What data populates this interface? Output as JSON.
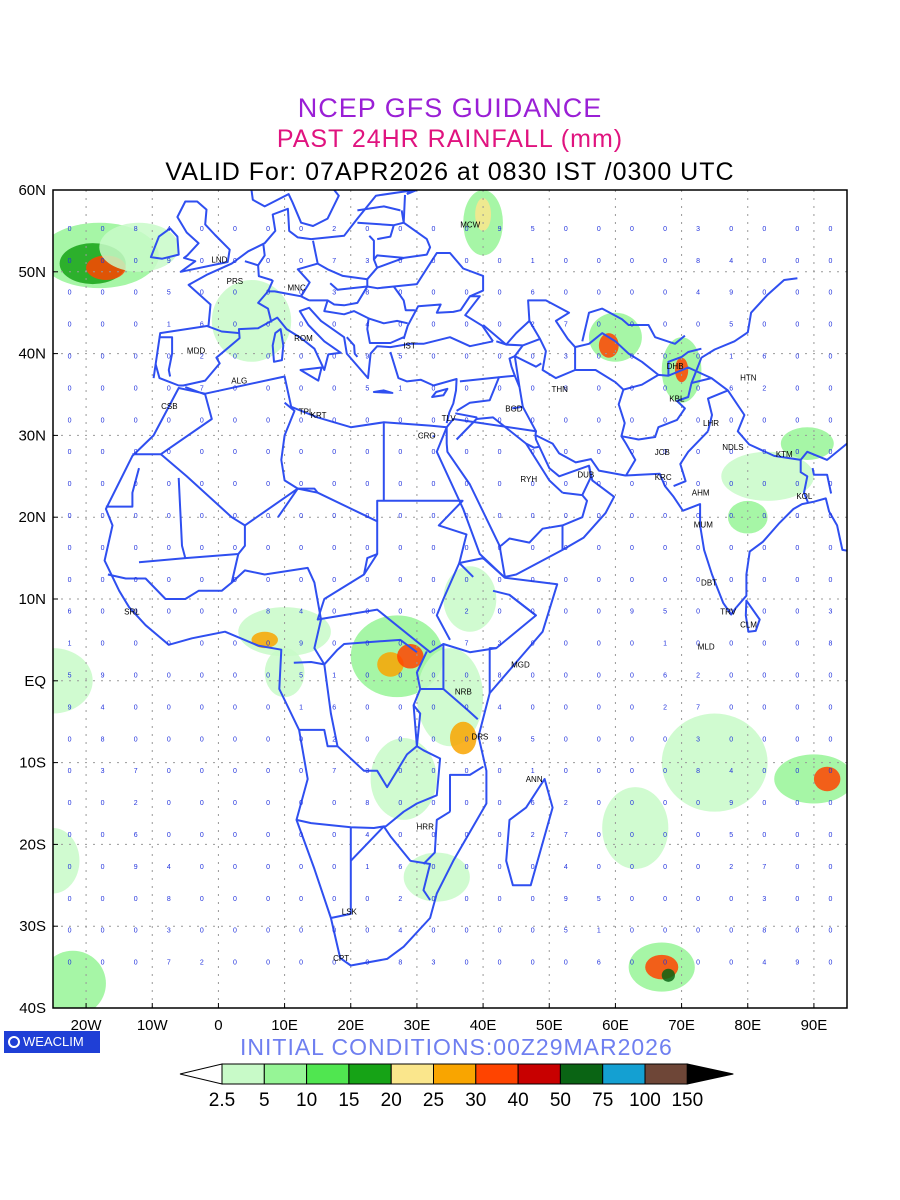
{
  "header": {
    "line1": "NCEP GFS GUIDANCE",
    "line2": "PAST 24HR RAINFALL (mm)",
    "line3": "VALID For: 07APR2026 at 0830 IST /0300 UTC"
  },
  "axes": {
    "lat_labels": [
      "60N",
      "50N",
      "40N",
      "30N",
      "20N",
      "10N",
      "EQ",
      "10S",
      "20S",
      "30S",
      "40S"
    ],
    "lon_labels": [
      "20W",
      "10W",
      "0",
      "10E",
      "20E",
      "30E",
      "40E",
      "50E",
      "60E",
      "70E",
      "80E",
      "90E"
    ],
    "lat_range": [
      -40,
      60
    ],
    "lon_range": [
      -25,
      95
    ]
  },
  "cities": [
    {
      "code": "LND",
      "lon": 0,
      "lat": 51.5
    },
    {
      "code": "PRS",
      "lon": 2.3,
      "lat": 48.9
    },
    {
      "code": "MNC",
      "lon": 11.5,
      "lat": 48.1
    },
    {
      "code": "MCW",
      "lon": 37.6,
      "lat": 55.8
    },
    {
      "code": "MDD",
      "lon": -3.7,
      "lat": 40.4
    },
    {
      "code": "ROM",
      "lon": 12.5,
      "lat": 41.9
    },
    {
      "code": "IST",
      "lon": 29,
      "lat": 41
    },
    {
      "code": "ALG",
      "lon": 3,
      "lat": 36.7
    },
    {
      "code": "CSB",
      "lon": -7.6,
      "lat": 33.6
    },
    {
      "code": "TPL",
      "lon": 13.2,
      "lat": 32.9
    },
    {
      "code": "KRT",
      "lon": 15,
      "lat": 32.5
    },
    {
      "code": "CRO",
      "lon": 31.2,
      "lat": 30
    },
    {
      "code": "TLV",
      "lon": 34.8,
      "lat": 32.1
    },
    {
      "code": "BGD",
      "lon": 44.4,
      "lat": 33.3
    },
    {
      "code": "THN",
      "lon": 51.4,
      "lat": 35.7
    },
    {
      "code": "RYH",
      "lon": 46.7,
      "lat": 24.7
    },
    {
      "code": "DUB",
      "lon": 55.3,
      "lat": 25.2
    },
    {
      "code": "DHB",
      "lon": 68.8,
      "lat": 38.5
    },
    {
      "code": "KBL",
      "lon": 69.2,
      "lat": 34.5
    },
    {
      "code": "HTN",
      "lon": 79.9,
      "lat": 37.1
    },
    {
      "code": "LHR",
      "lon": 74.3,
      "lat": 31.5
    },
    {
      "code": "JCB",
      "lon": 67,
      "lat": 28
    },
    {
      "code": "NDLS",
      "lon": 77.2,
      "lat": 28.6
    },
    {
      "code": "KTM",
      "lon": 85.3,
      "lat": 27.7
    },
    {
      "code": "KRC",
      "lon": 67,
      "lat": 24.9
    },
    {
      "code": "AHM",
      "lon": 72.6,
      "lat": 23
    },
    {
      "code": "KOL",
      "lon": 88.4,
      "lat": 22.6
    },
    {
      "code": "MUM",
      "lon": 72.9,
      "lat": 19.1
    },
    {
      "code": "DBT",
      "lon": 74,
      "lat": 12
    },
    {
      "code": "TRV",
      "lon": 76.9,
      "lat": 8.5
    },
    {
      "code": "CLM",
      "lon": 79.9,
      "lat": 6.9
    },
    {
      "code": "MLD",
      "lon": 73.5,
      "lat": 4.2
    },
    {
      "code": "SRL",
      "lon": -13.2,
      "lat": 8.5
    },
    {
      "code": "MGD",
      "lon": 45.3,
      "lat": 2
    },
    {
      "code": "NRB",
      "lon": 36.8,
      "lat": -1.3
    },
    {
      "code": "DRS",
      "lon": 39.3,
      "lat": -6.8
    },
    {
      "code": "ANN",
      "lon": 47.5,
      "lat": -12
    },
    {
      "code": "HRR",
      "lon": 31,
      "lat": -17.8
    },
    {
      "code": "LSK",
      "lon": 19.7,
      "lat": -28.2
    },
    {
      "code": "CPT",
      "lon": 18.4,
      "lat": -33.9
    }
  ],
  "legend": {
    "labels": [
      "2.5",
      "5",
      "10",
      "15",
      "20",
      "25",
      "30",
      "40",
      "50",
      "75",
      "100",
      "150"
    ],
    "colors": [
      "#c8fac8",
      "#96f596",
      "#50e650",
      "#16a316",
      "#fae68c",
      "#f9a500",
      "#ff4400",
      "#c80000",
      "#0a6414",
      "#14a0d2",
      "#6e4637"
    ]
  },
  "footer": {
    "logo": "WEACLIM",
    "init": "INITIAL CONDITIONS:00Z29MAR2026"
  },
  "colors": {
    "coast": "#2f4ff0",
    "grid_value": "#2233dd",
    "title1": "#9a1fd6",
    "title2": "#e0137f"
  }
}
